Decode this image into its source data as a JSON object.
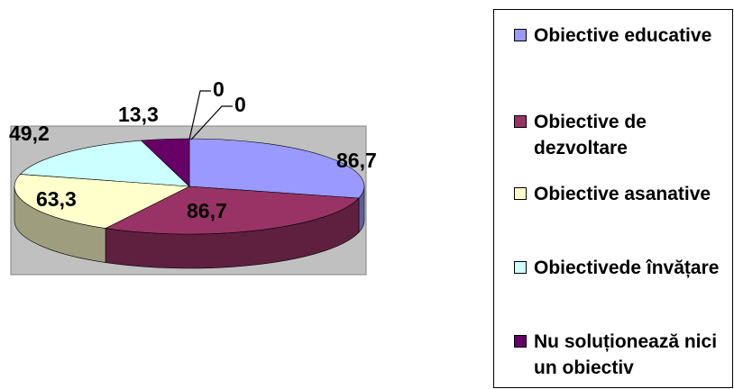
{
  "chart_data": {
    "type": "pie",
    "title": "",
    "series": [
      {
        "label": "Obiective educative",
        "value": 86.7,
        "display": "86,7",
        "color": "#9999FF"
      },
      {
        "label": "Obiective de dezvoltare",
        "value": 86.7,
        "display": "86,7",
        "color": "#993366"
      },
      {
        "label": "Obiective asanative",
        "value": 63.3,
        "display": "63,3",
        "color": "#FFFFCC"
      },
      {
        "label": "Obiectivede învățare",
        "value": 49.2,
        "display": "49,2",
        "color": "#CCFFFF"
      },
      {
        "label": "Nu soluționează nici un obiectiv",
        "value": 13.3,
        "display": "13,3",
        "color": "#660066"
      },
      {
        "label": "",
        "value": 0,
        "display": "0",
        "color": "#FF8080"
      },
      {
        "label": "",
        "value": 0,
        "display": "0",
        "color": "#0066CC"
      }
    ],
    "legend_position": "right",
    "style": "3d-pie",
    "plot_background": "#C0C0C0"
  }
}
